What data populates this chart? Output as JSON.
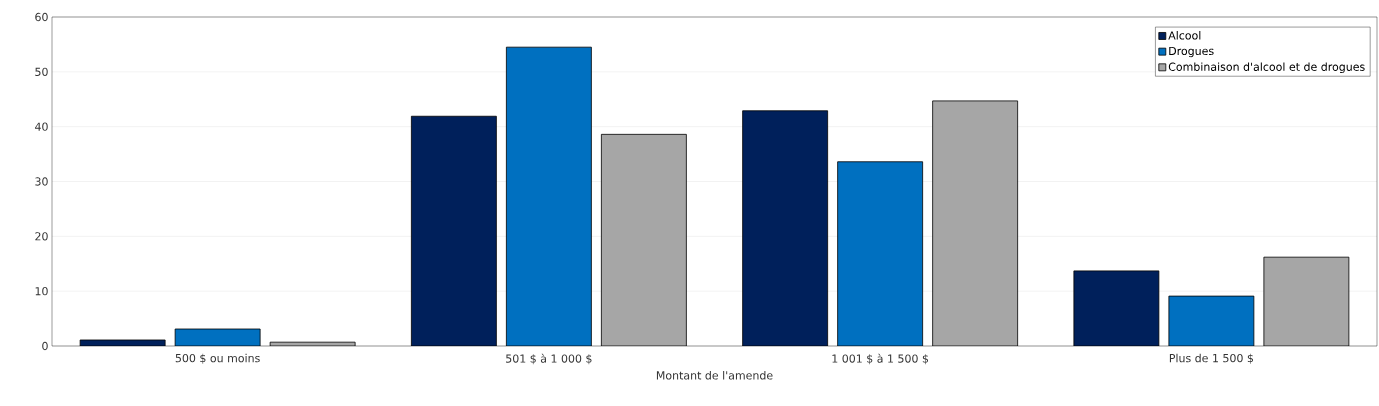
{
  "chart_data": {
    "type": "bar",
    "xlabel": "Montant de l'amende",
    "categories": [
      "500 $ ou moins",
      "501 $ à 1 000 $",
      "1 001 $ à 1 500 $",
      "Plus de 1 500 $"
    ],
    "series": [
      {
        "name": "Alcool",
        "color": "#00205b",
        "values": [
          1.1,
          41.9,
          42.9,
          13.7
        ]
      },
      {
        "name": "Drogues",
        "color": "#0070c0",
        "values": [
          3.1,
          54.5,
          33.6,
          9.1
        ]
      },
      {
        "name": "Combinaison d'alcool et de drogues",
        "color": "#a6a6a6",
        "values": [
          0.7,
          38.6,
          44.7,
          16.2
        ]
      }
    ],
    "ylim": [
      0,
      60
    ],
    "yticks": [
      0,
      10,
      20,
      30,
      40,
      50,
      60
    ],
    "grid": "y",
    "legend": "top right"
  }
}
